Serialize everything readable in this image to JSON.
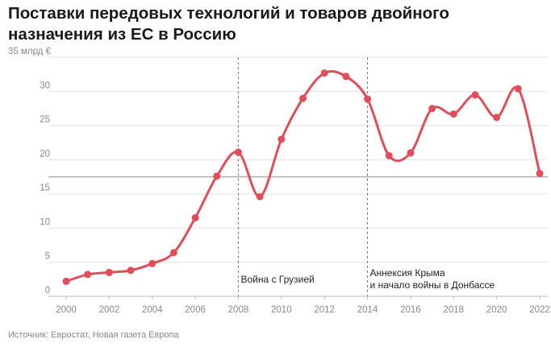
{
  "title": {
    "line1": "Поставки передовых технологий и товаров двойного",
    "line2": "назначения из ЕС в Россию"
  },
  "source": "Источник: Евростат, Новая газета Европа",
  "colors": {
    "line": "#e04e5c",
    "grid": "#e2e2e2",
    "reference": "#888888",
    "event": "#777777"
  },
  "chart_data": {
    "type": "line",
    "title": "Поставки передовых технологий и товаров двойного назначения из ЕС в Россию",
    "x": [
      2000,
      2001,
      2002,
      2003,
      2004,
      2005,
      2006,
      2007,
      2008,
      2009,
      2010,
      2011,
      2012,
      2013,
      2014,
      2015,
      2016,
      2017,
      2018,
      2019,
      2020,
      2021,
      2022
    ],
    "series": [
      {
        "values": [
          2.2,
          3.2,
          3.5,
          3.8,
          4.8,
          6.4,
          11.5,
          17.6,
          21.1,
          14.6,
          23.0,
          29.0,
          32.7,
          32.2,
          28.9,
          20.6,
          21.0,
          27.5,
          26.7,
          29.5,
          26.2,
          30.4,
          18.0
        ]
      }
    ],
    "xlim": [
      2000,
      2022
    ],
    "ylim": [
      0,
      35
    ],
    "y_ticks": [
      0,
      5,
      10,
      15,
      20,
      25,
      30,
      35
    ],
    "y_tick_labels": [
      "0",
      "5",
      "10",
      "15",
      "20",
      "25",
      "30",
      "35 млрд €"
    ],
    "x_ticks": [
      2000,
      2002,
      2004,
      2006,
      2008,
      2010,
      2012,
      2014,
      2016,
      2018,
      2020,
      2022
    ],
    "x_tick_labels": [
      "2000",
      "2002",
      "2004",
      "2006",
      "2008",
      "2010",
      "2012",
      "2014",
      "2016",
      "2018",
      "2020",
      "2022"
    ],
    "reference_line": {
      "y": 17.5
    },
    "annotations": [
      {
        "x": 2008,
        "lines": [
          "Война с Грузией"
        ]
      },
      {
        "x": 2014,
        "lines": [
          "Аннексия Крыма",
          "и начало войны в Донбассе"
        ]
      }
    ],
    "grid": true,
    "smooth": true,
    "markers": true
  }
}
